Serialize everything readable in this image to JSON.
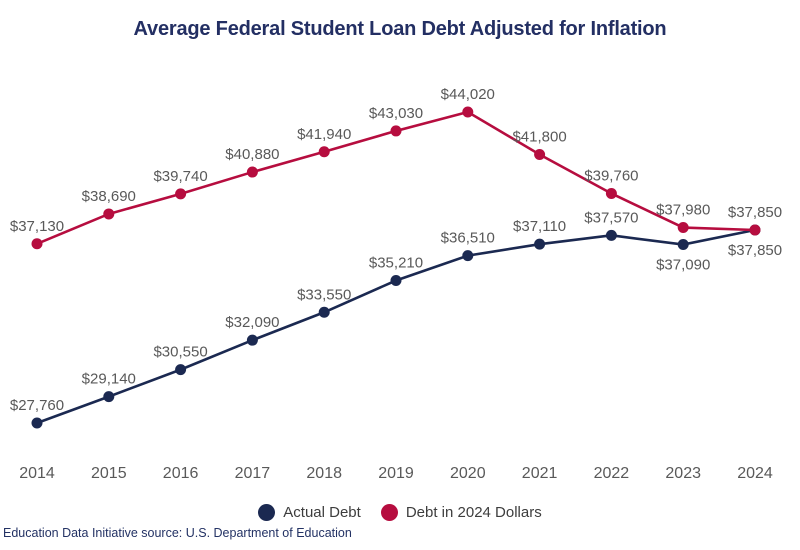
{
  "title": "Average Federal Student Loan Debt Adjusted for Inflation",
  "colors": {
    "navy": "#1b2951",
    "red": "#b60d3f",
    "label_gray": "#595959",
    "title_navy": "#232f63"
  },
  "chart_data": {
    "type": "line",
    "title": "Average Federal Student Loan Debt Adjusted for Inflation",
    "x": [
      2014,
      2015,
      2016,
      2017,
      2018,
      2019,
      2020,
      2021,
      2022,
      2023,
      2024
    ],
    "series": [
      {
        "name": "Actual Debt",
        "color": "#1b2951",
        "values": [
          27760,
          29140,
          30550,
          32090,
          33550,
          35210,
          36510,
          37110,
          37570,
          37090,
          37850
        ],
        "labels": [
          "$27,760",
          "$29,140",
          "$30,550",
          "$32,090",
          "$33,550",
          "$35,210",
          "$36,510",
          "$37,110",
          "$37,570",
          "$37,090",
          "$37,850"
        ],
        "label_positions": [
          "above",
          "above",
          "above",
          "above",
          "above",
          "above",
          "above",
          "above",
          "above",
          "below",
          "below"
        ]
      },
      {
        "name": "Debt in 2024 Dollars",
        "color": "#b60d3f",
        "values": [
          37130,
          38690,
          39740,
          40880,
          41940,
          43030,
          44020,
          41800,
          39760,
          37980,
          37850
        ],
        "labels": [
          "$37,130",
          "$38,690",
          "$39,740",
          "$40,880",
          "$41,940",
          "$43,030",
          "$44,020",
          "$41,800",
          "$39,760",
          "$37,980",
          "$37,850"
        ],
        "label_positions": [
          "above",
          "above",
          "above",
          "above",
          "above",
          "above",
          "above",
          "above",
          "above",
          "above",
          "above"
        ]
      }
    ],
    "ylim": [
      27760,
      44020
    ],
    "grid": false,
    "axes_shown": false,
    "legend_position": "bottom"
  },
  "legend": [
    {
      "label": "Actual Debt"
    },
    {
      "label": "Debt in 2024 Dollars"
    }
  ],
  "footer": "Education Data Initiative source: U.S. Department of Education"
}
